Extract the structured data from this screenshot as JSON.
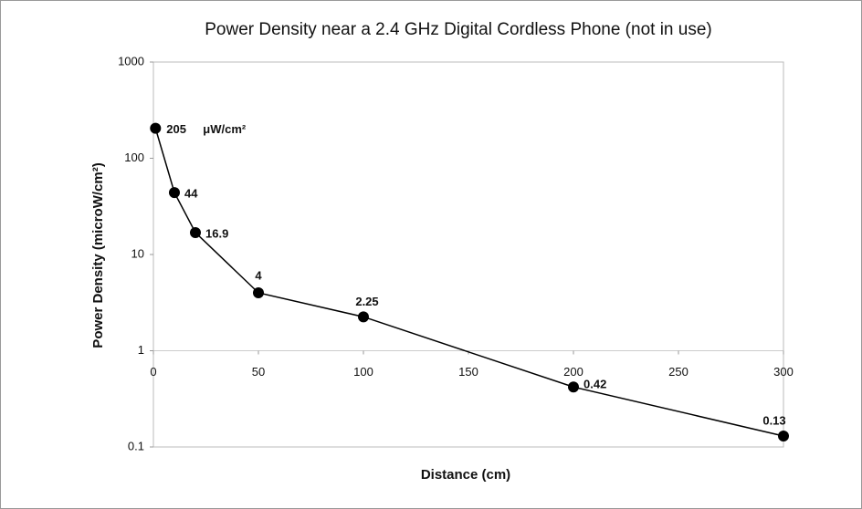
{
  "chart_data": {
    "type": "line",
    "title": "Power Density near a 2.4 GHz Digital Cordless Phone (not in use)",
    "x_label": "Distance (cm)",
    "y_label": "Power Density (microW/cm²)",
    "annotation": "μW/cm²",
    "x": [
      1,
      10,
      20,
      50,
      100,
      200,
      300
    ],
    "series": [
      {
        "color": "#000000",
        "values": [
          205,
          44,
          16.9,
          4,
          2.25,
          0.42,
          0.13
        ]
      }
    ],
    "xlim": [
      0,
      300
    ],
    "xticks": [
      0,
      50,
      100,
      150,
      200,
      250,
      300
    ],
    "ylim": [
      0.1,
      1000
    ],
    "yticks": [
      0.1,
      1,
      10,
      100,
      1000
    ],
    "y_log": true,
    "x_axis_crosses": 1,
    "grid": false
  }
}
